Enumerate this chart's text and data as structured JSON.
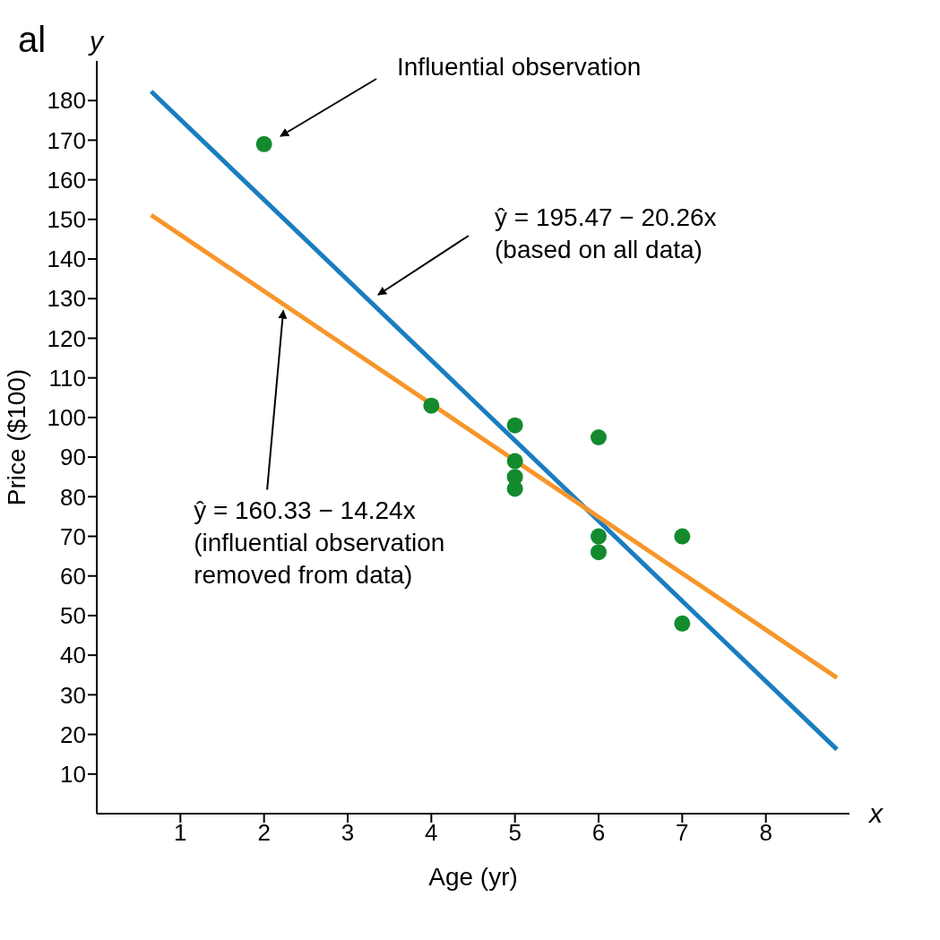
{
  "chart_data": {
    "type": "scatter",
    "xlabel": "Age (yr)",
    "ylabel": "Price ($100)",
    "xlim": [
      0,
      9
    ],
    "ylim": [
      0,
      190
    ],
    "xticks": [
      1,
      2,
      3,
      4,
      5,
      6,
      7,
      8
    ],
    "yticks": [
      10,
      20,
      30,
      40,
      50,
      60,
      70,
      80,
      90,
      100,
      110,
      120,
      130,
      140,
      150,
      160,
      170,
      180
    ],
    "marker": "circle",
    "series": [
      {
        "color": "#138a2e",
        "x": [
          2,
          4,
          5,
          5,
          5,
          5,
          6,
          6,
          6,
          7,
          7
        ],
        "values": [
          169,
          103,
          98,
          89,
          85,
          82,
          95,
          70,
          66,
          70,
          48
        ]
      },
      {
        "type": "line",
        "marker": "none",
        "color": "#1a7dc0",
        "x": [
          0.65,
          8.85
        ],
        "values": [
          182.3,
          16.2
        ]
      },
      {
        "type": "line",
        "marker": "none",
        "color": "#f7962a",
        "x": [
          0.65,
          8.85
        ],
        "values": [
          151.1,
          34.3
        ]
      }
    ],
    "annotations": [
      "al",
      "y",
      "x",
      "Influential observation",
      "ŷ = 195.47 − 20.26x\n(based on all data)",
      {
        "text": "ŷ = 160.33 − 14.24x\n(influential observation\nremoved from data)",
        "x": 2.23,
        "y": 127
      }
    ]
  }
}
